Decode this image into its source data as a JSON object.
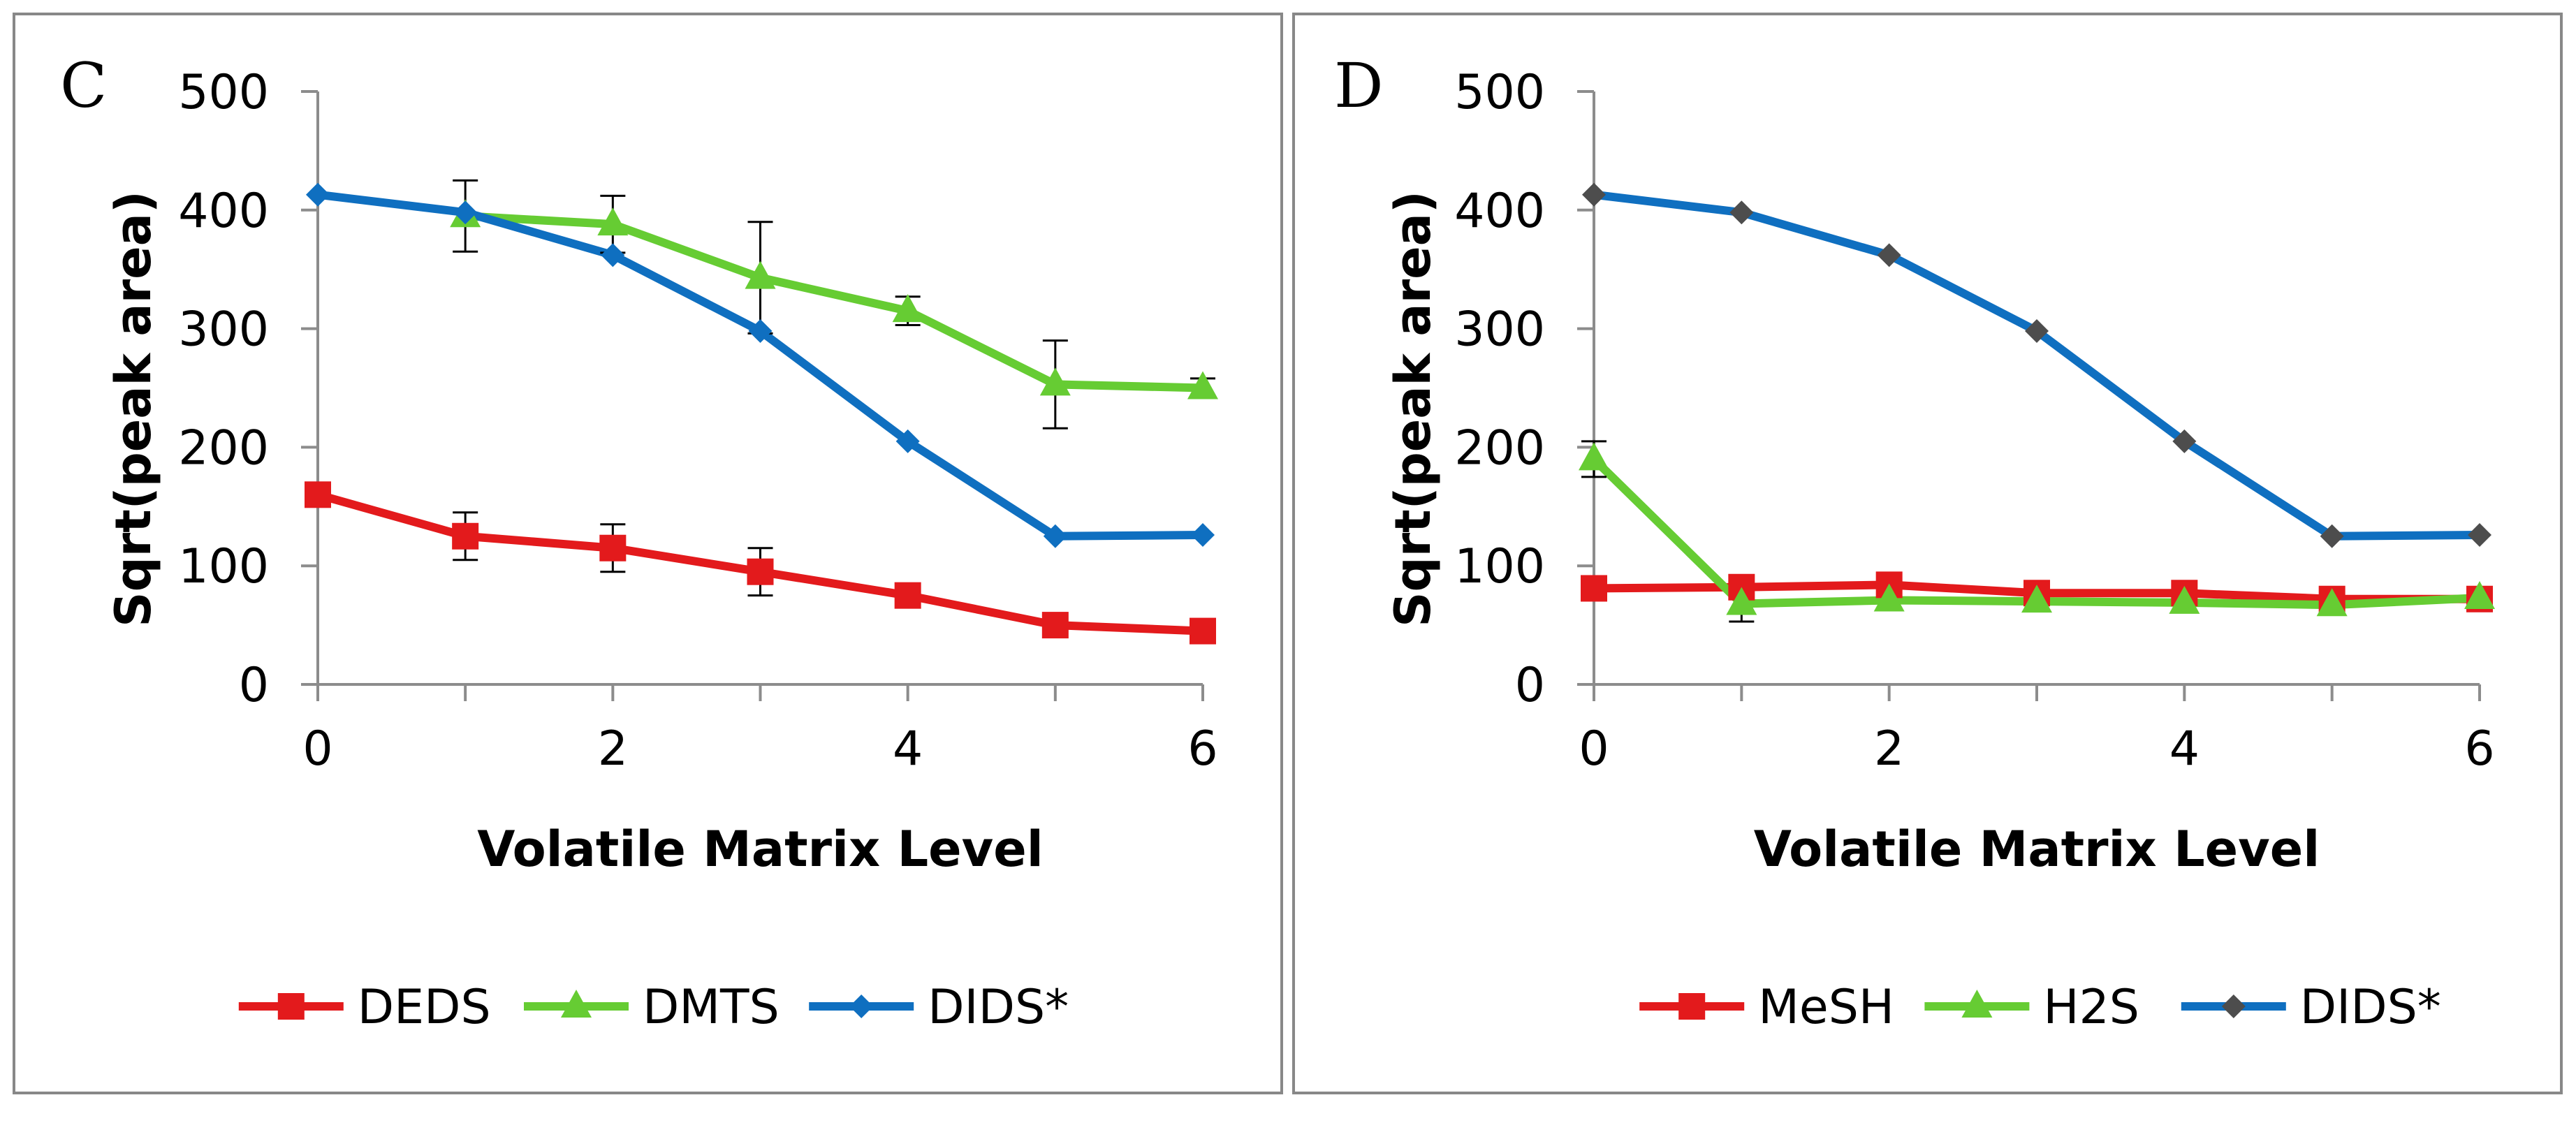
{
  "chart_data": [
    {
      "type": "line",
      "panel_label": "C",
      "xlabel": "Volatile Matrix Level",
      "ylabel": "Sqrt(peak area)",
      "xlim": [
        0,
        6
      ],
      "ylim": [
        0,
        500
      ],
      "xticks": [
        0,
        2,
        4,
        6
      ],
      "yticks": [
        0,
        100,
        200,
        300,
        400,
        500
      ],
      "x": [
        0,
        1,
        2,
        3,
        4,
        5,
        6
      ],
      "grid": false,
      "legend_position": "bottom",
      "series": [
        {
          "name": "DEDS",
          "color": "#e31a1c",
          "marker": "square",
          "values": [
            160,
            125,
            115,
            95,
            75,
            50,
            45
          ],
          "error": [
            null,
            20,
            20,
            20,
            null,
            null,
            null
          ]
        },
        {
          "name": "DMTS",
          "color": "#66cc33",
          "marker": "triangle",
          "values": [
            null,
            395,
            388,
            343,
            315,
            253,
            250
          ],
          "error": [
            null,
            30,
            24,
            47,
            12,
            37,
            8
          ]
        },
        {
          "name": "DIDS*",
          "color": "#0f6fc0",
          "marker": "diamond",
          "values": [
            413,
            398,
            362,
            298,
            205,
            125,
            126
          ],
          "error": [
            null,
            null,
            null,
            null,
            null,
            null,
            null
          ]
        }
      ]
    },
    {
      "type": "line",
      "panel_label": "D",
      "xlabel": "Volatile Matrix Level",
      "ylabel": "Sqrt(peak area)",
      "xlim": [
        0,
        6
      ],
      "ylim": [
        0,
        500
      ],
      "xticks": [
        0,
        2,
        4,
        6
      ],
      "yticks": [
        0,
        100,
        200,
        300,
        400,
        500
      ],
      "x": [
        0,
        1,
        2,
        3,
        4,
        5,
        6
      ],
      "grid": false,
      "legend_position": "bottom",
      "series": [
        {
          "name": "MeSH",
          "color": "#e31a1c",
          "marker": "square",
          "values": [
            81,
            82,
            84,
            77,
            77,
            72,
            72
          ],
          "error": [
            null,
            null,
            null,
            null,
            null,
            null,
            null
          ]
        },
        {
          "name": "H2S",
          "color": "#66cc33",
          "marker": "triangle",
          "values": [
            190,
            68,
            71,
            70,
            69,
            67,
            73
          ],
          "error": [
            15,
            15,
            null,
            null,
            null,
            null,
            null
          ]
        },
        {
          "name": "DIDS*",
          "color": "#0f6fc0",
          "marker": "diamond",
          "marker_color": "#4d4d4d",
          "values": [
            413,
            398,
            362,
            298,
            205,
            125,
            126
          ],
          "error": [
            null,
            null,
            null,
            null,
            null,
            null,
            null
          ]
        }
      ]
    }
  ]
}
